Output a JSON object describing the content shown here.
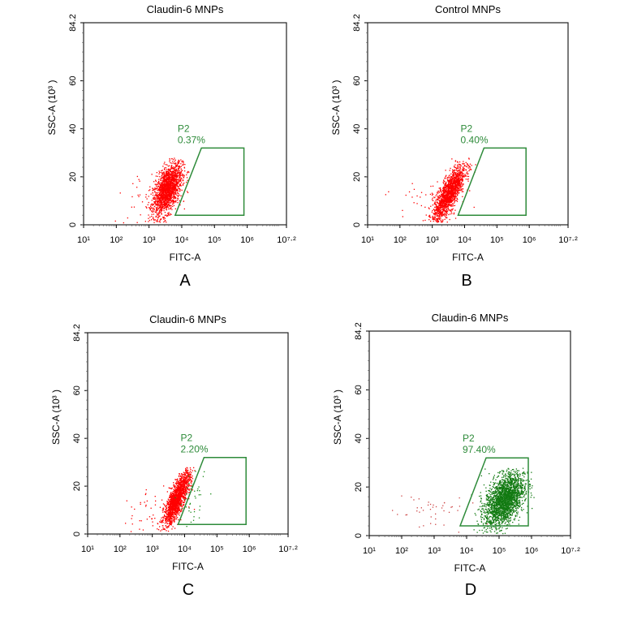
{
  "chart_data": [
    {
      "type": "scatter",
      "panel_label": "A",
      "title": "Claudin-6 MNPs",
      "xlabel": "FITC-A",
      "ylabel": "SSC-A (10³ )",
      "x_scale": "log",
      "xlim_log10": [
        1,
        7.2
      ],
      "ylim": [
        0,
        84.2
      ],
      "x_ticks": [
        "10¹",
        "10²",
        "10³",
        "10⁴",
        "10⁵",
        "10⁶",
        "10⁷·²"
      ],
      "y_ticks": [
        "0",
        "20",
        "40",
        "60",
        "84.2"
      ],
      "gate": {
        "name": "P2",
        "percent": "0.37%",
        "color": "#2e8b3a",
        "vertices_log10x_y": [
          [
            3.8,
            4
          ],
          [
            4.6,
            32
          ],
          [
            5.9,
            32
          ],
          [
            5.9,
            4
          ]
        ]
      },
      "populations": [
        {
          "color": "#ff0000",
          "count": 1800,
          "center_log10x": 3.55,
          "center_y": 15,
          "sd_log10x": 0.22,
          "sd_y": 5.5,
          "corr": 0.55
        },
        {
          "color": "#ff0000",
          "count": 40,
          "center_log10x": 3.0,
          "center_y": 11,
          "sd_log10x": 0.6,
          "sd_y": 6,
          "corr": 0
        }
      ]
    },
    {
      "type": "scatter",
      "panel_label": "B",
      "title": "Control MNPs",
      "xlabel": "FITC-A",
      "ylabel": "SSC-A (10³ )",
      "x_scale": "log",
      "xlim_log10": [
        1,
        7.2
      ],
      "ylim": [
        0,
        84.2
      ],
      "x_ticks": [
        "10¹",
        "10²",
        "10³",
        "10⁴",
        "10⁵",
        "10⁶",
        "10⁷·²"
      ],
      "y_ticks": [
        "0",
        "20",
        "40",
        "60",
        "84.2"
      ],
      "gate": {
        "name": "P2",
        "percent": "0.40%",
        "color": "#2e8b3a",
        "vertices_log10x_y": [
          [
            3.8,
            4
          ],
          [
            4.6,
            32
          ],
          [
            5.9,
            32
          ],
          [
            5.9,
            4
          ]
        ]
      },
      "populations": [
        {
          "color": "#ff0000",
          "count": 1600,
          "center_log10x": 3.5,
          "center_y": 13,
          "sd_log10x": 0.25,
          "sd_y": 6,
          "corr": 0.8
        },
        {
          "color": "#ff0000",
          "count": 50,
          "center_log10x": 2.9,
          "center_y": 10,
          "sd_log10x": 0.6,
          "sd_y": 6,
          "corr": 0.3
        }
      ]
    },
    {
      "type": "scatter",
      "panel_label": "C",
      "title": "Claudin-6 MNPs",
      "xlabel": "FITC-A",
      "ylabel": "SSC-A (10³ )",
      "x_scale": "log",
      "xlim_log10": [
        1,
        7.2
      ],
      "ylim": [
        0,
        84.2
      ],
      "x_ticks": [
        "10¹",
        "10²",
        "10³",
        "10⁴",
        "10⁵",
        "10⁶",
        "10⁷·²"
      ],
      "y_ticks": [
        "0",
        "20",
        "40",
        "60",
        "84.2"
      ],
      "gate": {
        "name": "P2",
        "percent": "2.20%",
        "color": "#2e8b3a",
        "vertices_log10x_y": [
          [
            3.8,
            4
          ],
          [
            4.6,
            32
          ],
          [
            5.9,
            32
          ],
          [
            5.9,
            4
          ]
        ]
      },
      "populations": [
        {
          "color": "#ff0000",
          "count": 1600,
          "center_log10x": 3.75,
          "center_y": 15,
          "sd_log10x": 0.2,
          "sd_y": 5.5,
          "corr": 0.8
        },
        {
          "color": "#ff0000",
          "count": 60,
          "center_log10x": 3.1,
          "center_y": 10,
          "sd_log10x": 0.55,
          "sd_y": 6,
          "corr": 0.3
        },
        {
          "color": "#1a8a1a",
          "count": 40,
          "center_log10x": 4.3,
          "center_y": 14,
          "sd_log10x": 0.2,
          "sd_y": 6,
          "corr": 0.3
        }
      ]
    },
    {
      "type": "scatter",
      "panel_label": "D",
      "title": "Claudin-6 MNPs",
      "xlabel": "FITC-A",
      "ylabel": "SSC-A (10³ )",
      "x_scale": "log",
      "xlim_log10": [
        1,
        7.2
      ],
      "ylim": [
        0,
        84.2
      ],
      "x_ticks": [
        "10¹",
        "10²",
        "10³",
        "10⁴",
        "10⁵",
        "10⁶",
        "10⁷·²"
      ],
      "y_ticks": [
        "0",
        "20",
        "40",
        "60",
        "84.2"
      ],
      "gate": {
        "name": "P2",
        "percent": "97.40%",
        "color": "#2e8b3a",
        "vertices_log10x_y": [
          [
            3.8,
            4
          ],
          [
            4.6,
            32
          ],
          [
            5.9,
            32
          ],
          [
            5.9,
            4
          ]
        ]
      },
      "populations": [
        {
          "color": "#127a12",
          "count": 2200,
          "center_log10x": 5.15,
          "center_y": 15,
          "sd_log10x": 0.3,
          "sd_y": 5.5,
          "corr": 0.45
        },
        {
          "color": "#cc4444",
          "count": 45,
          "center_log10x": 2.8,
          "center_y": 10,
          "sd_log10x": 0.55,
          "sd_y": 5,
          "corr": 0
        }
      ]
    }
  ]
}
